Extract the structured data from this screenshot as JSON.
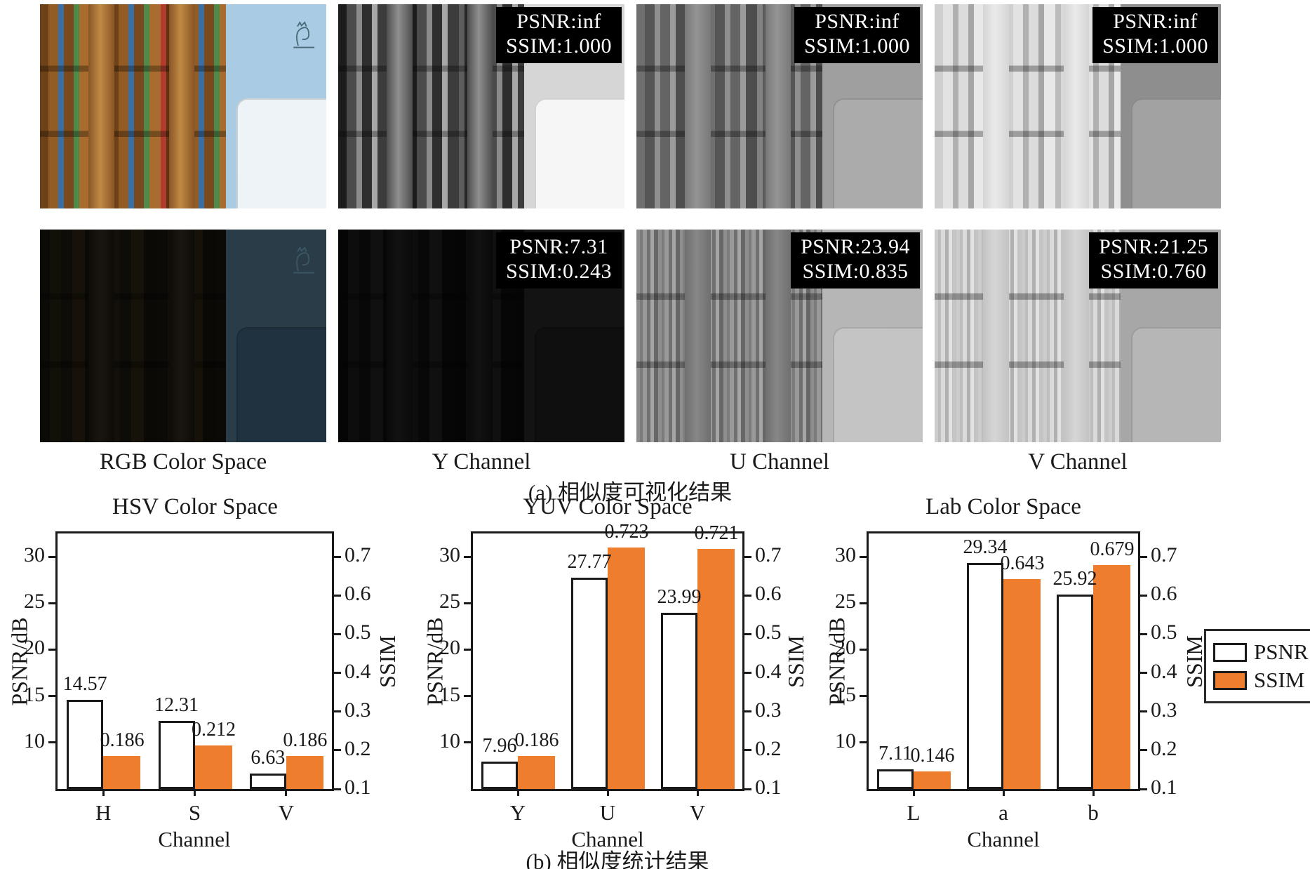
{
  "panels": {
    "column_labels": [
      "RGB Color Space",
      "Y Channel",
      "U Channel",
      "V Channel"
    ],
    "rows": [
      {
        "name": "original",
        "cells": [
          {
            "overlay": null
          },
          {
            "overlay": {
              "psnr": "PSNR:inf",
              "ssim": "SSIM:1.000"
            }
          },
          {
            "overlay": {
              "psnr": "PSNR:inf",
              "ssim": "SSIM:1.000"
            }
          },
          {
            "overlay": {
              "psnr": "PSNR:inf",
              "ssim": "SSIM:1.000"
            }
          }
        ]
      },
      {
        "name": "degraded",
        "cells": [
          {
            "overlay": null
          },
          {
            "overlay": {
              "psnr": "PSNR:7.31",
              "ssim": "SSIM:0.243"
            }
          },
          {
            "overlay": {
              "psnr": "PSNR:23.94",
              "ssim": "SSIM:0.835"
            }
          },
          {
            "overlay": {
              "psnr": "PSNR:21.25",
              "ssim": "SSIM:0.760"
            }
          }
        ]
      }
    ]
  },
  "captions": {
    "a": "(a) 相似度可视化结果",
    "b": "(b) 相似度统计结果"
  },
  "chart_data": [
    {
      "type": "bar",
      "title": "HSV Color Space",
      "categories": [
        "H",
        "S",
        "V"
      ],
      "series": [
        {
          "name": "PSNR",
          "values": [
            "14.57",
            "12.31",
            "6.63"
          ]
        },
        {
          "name": "SSIM",
          "values": [
            "0.186",
            "0.212",
            "0.186"
          ]
        }
      ],
      "xlabel": "Channel",
      "ylabel_left": "PSNR/dB",
      "ylabel_right": "SSIM",
      "yticks_left": [
        "30",
        "25",
        "20",
        "15",
        "10"
      ],
      "yticks_right": [
        "0.7",
        "0.6",
        "0.5",
        "0.4",
        "0.3",
        "0.2",
        "0.1"
      ],
      "ylim_left": [
        5,
        32.5
      ],
      "ylim_right": [
        0.1,
        0.76
      ],
      "grid": false
    },
    {
      "type": "bar",
      "title": "YUV Color Space",
      "categories": [
        "Y",
        "U",
        "V"
      ],
      "series": [
        {
          "name": "PSNR",
          "values": [
            "7.96",
            "27.77",
            "23.99"
          ]
        },
        {
          "name": "SSIM",
          "values": [
            "0.186",
            "0.723",
            "0.721"
          ]
        }
      ],
      "xlabel": "Channel",
      "ylabel_left": "PSNR/dB",
      "ylabel_right": "SSIM",
      "yticks_left": [
        "30",
        "25",
        "20",
        "15",
        "10"
      ],
      "yticks_right": [
        "0.7",
        "0.6",
        "0.5",
        "0.4",
        "0.3",
        "0.2",
        "0.1"
      ],
      "ylim_left": [
        5,
        32.5
      ],
      "ylim_right": [
        0.1,
        0.76
      ],
      "grid": false
    },
    {
      "type": "bar",
      "title": "Lab Color Space",
      "categories": [
        "L",
        "a",
        "b"
      ],
      "series": [
        {
          "name": "PSNR",
          "values": [
            "7.11",
            "29.34",
            "25.92"
          ]
        },
        {
          "name": "SSIM",
          "values": [
            "0.146",
            "0.643",
            "0.679"
          ]
        }
      ],
      "xlabel": "Channel",
      "ylabel_left": "PSNR/dB",
      "ylabel_right": "SSIM",
      "yticks_left": [
        "30",
        "25",
        "20",
        "15",
        "10"
      ],
      "yticks_right": [
        "0.7",
        "0.6",
        "0.5",
        "0.4",
        "0.3",
        "0.2",
        "0.1"
      ],
      "ylim_left": [
        5,
        32.5
      ],
      "ylim_right": [
        0.1,
        0.76
      ],
      "grid": false
    }
  ],
  "legend": {
    "position": "right",
    "entries": [
      {
        "label": "PSNR",
        "color": "#ffffff"
      },
      {
        "label": "SSIM",
        "color": "#ee7d2e"
      }
    ]
  },
  "colors": {
    "bar_psnr": "#ffffff",
    "bar_ssim": "#ee7d2e",
    "axis": "#1a1a1a",
    "overlay_bg": "#000000",
    "overlay_text": "#ffffff"
  }
}
